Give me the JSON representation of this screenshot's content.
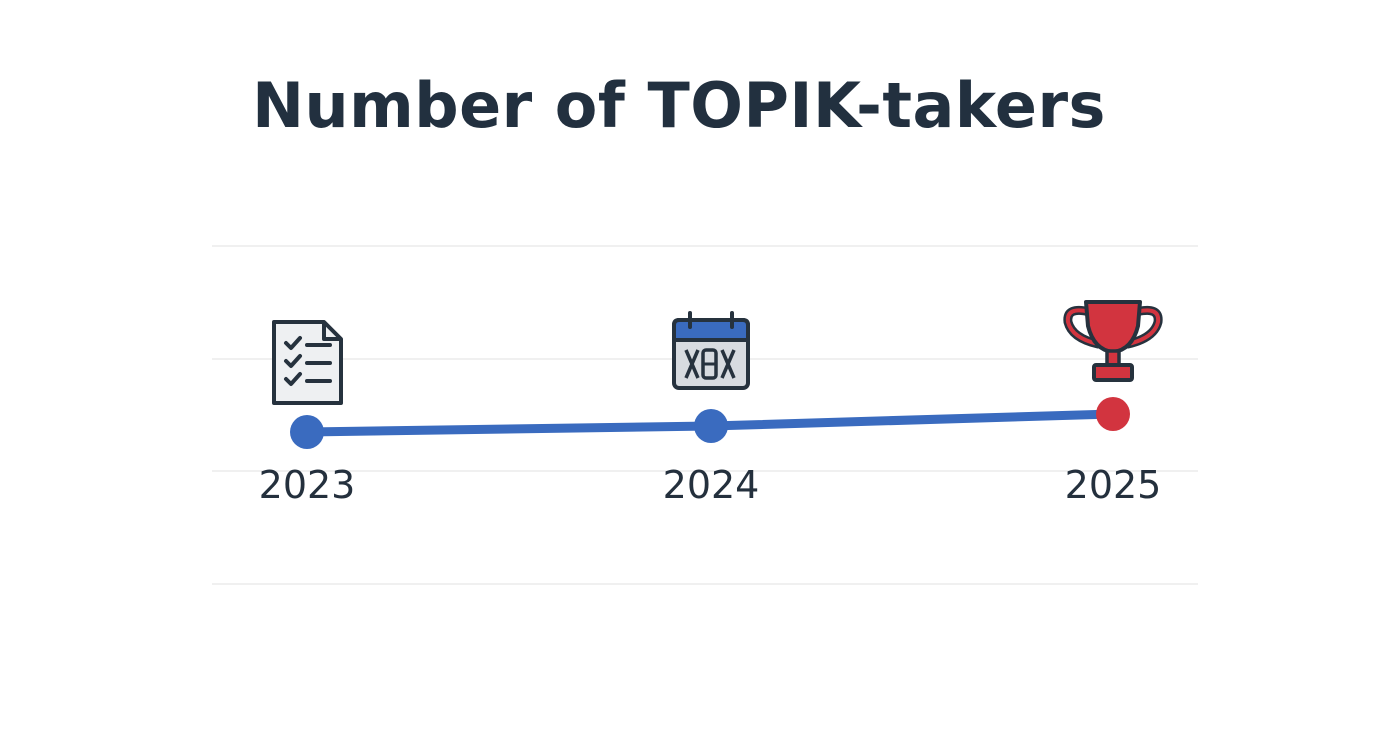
{
  "chart_data": {
    "type": "line",
    "title": "Number of TOPIK-takers",
    "xlabel": "",
    "ylabel": "",
    "categories": [
      "2023",
      "2024",
      "2025"
    ],
    "values": [
      1,
      1.4,
      2.2
    ],
    "ylim": [
      0,
      10
    ],
    "grid": true,
    "legend": "none",
    "icons": [
      "checklist-icon",
      "calendar-icon",
      "trophy-icon"
    ],
    "colors": {
      "line": "#3a6bbf",
      "points": [
        "#3a6bbf",
        "#3a6bbf",
        "#d2343f"
      ],
      "title": "#22303f",
      "grid": "#ececec"
    }
  }
}
